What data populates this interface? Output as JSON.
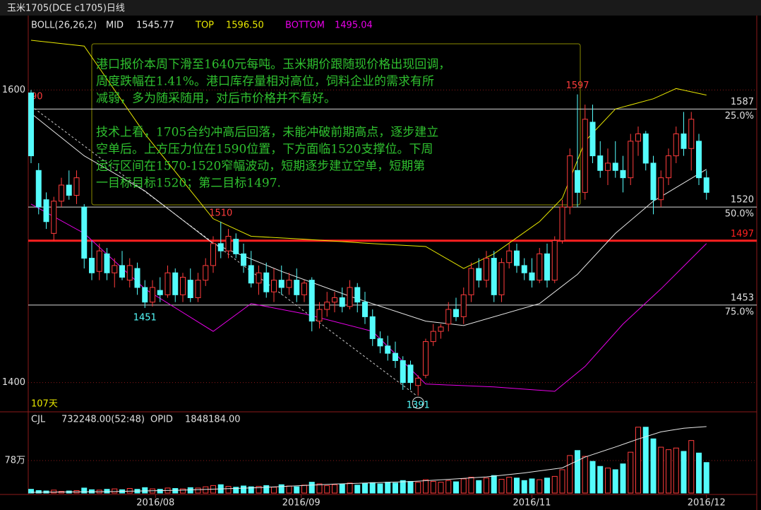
{
  "header": {
    "title": "玉米1705(DCE c1705)日线"
  },
  "chart_data": {
    "type": "candlestick",
    "indicator": {
      "name": "BOLL(26,26,2)",
      "items": [
        {
          "name": "MID",
          "value": 1545.77,
          "label": "1545.77",
          "color": "#e8e8e8"
        },
        {
          "name": "TOP",
          "value": 1596.5,
          "label": "1596.50",
          "color": "#e8e800"
        },
        {
          "name": "BOTTOM",
          "value": 1495.04,
          "label": "1495.04",
          "color": "#e800e8"
        }
      ]
    },
    "ylim": [
      1380,
      1648
    ],
    "yticks": [
      1400,
      1600
    ],
    "grid": true,
    "up_color": "#ff3c3c",
    "down_color": "#54fcfc",
    "ohlc": [
      [
        1598,
        1600,
        1550,
        1555
      ],
      [
        1545,
        1550,
        1515,
        1520
      ],
      [
        1525,
        1530,
        1505,
        1510
      ],
      [
        1502,
        1527,
        1497,
        1524
      ],
      [
        1524,
        1540,
        1520,
        1535
      ],
      [
        1535,
        1545,
        1525,
        1528
      ],
      [
        1528,
        1545,
        1522,
        1540
      ],
      [
        1520,
        1522,
        1478,
        1485
      ],
      [
        1485,
        1497,
        1470,
        1475
      ],
      [
        1476,
        1495,
        1470,
        1490
      ],
      [
        1488,
        1492,
        1470,
        1475
      ],
      [
        1475,
        1485,
        1465,
        1480
      ],
      [
        1480,
        1490,
        1470,
        1472
      ],
      [
        1470,
        1485,
        1465,
        1480
      ],
      [
        1478,
        1482,
        1460,
        1465
      ],
      [
        1465,
        1470,
        1451,
        1455
      ],
      [
        1455,
        1470,
        1452,
        1465
      ],
      [
        1463,
        1472,
        1455,
        1460
      ],
      [
        1460,
        1480,
        1458,
        1475
      ],
      [
        1475,
        1478,
        1455,
        1460
      ],
      [
        1460,
        1475,
        1455,
        1472
      ],
      [
        1470,
        1478,
        1455,
        1458
      ],
      [
        1458,
        1475,
        1455,
        1470
      ],
      [
        1470,
        1485,
        1466,
        1480
      ],
      [
        1480,
        1500,
        1475,
        1495
      ],
      [
        1495,
        1510,
        1485,
        1490
      ],
      [
        1490,
        1505,
        1485,
        1500
      ],
      [
        1498,
        1502,
        1485,
        1488
      ],
      [
        1488,
        1495,
        1475,
        1480
      ],
      [
        1480,
        1490,
        1465,
        1468
      ],
      [
        1468,
        1480,
        1460,
        1475
      ],
      [
        1475,
        1482,
        1458,
        1462
      ],
      [
        1462,
        1478,
        1455,
        1470
      ],
      [
        1470,
        1480,
        1460,
        1465
      ],
      [
        1465,
        1475,
        1460,
        1470
      ],
      [
        1470,
        1478,
        1455,
        1460
      ],
      [
        1460,
        1470,
        1455,
        1468
      ],
      [
        1470,
        1472,
        1435,
        1442
      ],
      [
        1442,
        1455,
        1437,
        1450
      ],
      [
        1450,
        1462,
        1445,
        1455
      ],
      [
        1455,
        1462,
        1448,
        1458
      ],
      [
        1458,
        1465,
        1448,
        1452
      ],
      [
        1452,
        1470,
        1450,
        1465
      ],
      [
        1465,
        1468,
        1448,
        1455
      ],
      [
        1455,
        1462,
        1440,
        1445
      ],
      [
        1445,
        1450,
        1425,
        1430
      ],
      [
        1430,
        1435,
        1420,
        1425
      ],
      [
        1425,
        1432,
        1415,
        1420
      ],
      [
        1420,
        1428,
        1410,
        1415
      ],
      [
        1415,
        1418,
        1395,
        1400
      ],
      [
        1412,
        1415,
        1395,
        1400
      ],
      [
        1398,
        1405,
        1391,
        1403
      ],
      [
        1405,
        1430,
        1403,
        1428
      ],
      [
        1428,
        1440,
        1425,
        1435
      ],
      [
        1435,
        1440,
        1430,
        1438
      ],
      [
        1440,
        1455,
        1435,
        1450
      ],
      [
        1450,
        1458,
        1442,
        1445
      ],
      [
        1445,
        1465,
        1440,
        1460
      ],
      [
        1460,
        1482,
        1455,
        1478
      ],
      [
        1478,
        1485,
        1465,
        1470
      ],
      [
        1470,
        1490,
        1465,
        1485
      ],
      [
        1485,
        1490,
        1455,
        1460
      ],
      [
        1460,
        1485,
        1455,
        1482
      ],
      [
        1482,
        1495,
        1478,
        1490
      ],
      [
        1490,
        1495,
        1475,
        1480
      ],
      [
        1480,
        1485,
        1470,
        1475
      ],
      [
        1475,
        1485,
        1465,
        1470
      ],
      [
        1470,
        1492,
        1468,
        1488
      ],
      [
        1488,
        1495,
        1465,
        1470
      ],
      [
        1470,
        1500,
        1468,
        1497
      ],
      [
        1497,
        1525,
        1495,
        1520
      ],
      [
        1520,
        1560,
        1515,
        1555
      ],
      [
        1545,
        1597,
        1520,
        1530
      ],
      [
        1530,
        1590,
        1525,
        1580
      ],
      [
        1578,
        1590,
        1550,
        1555
      ],
      [
        1555,
        1565,
        1540,
        1545
      ],
      [
        1545,
        1560,
        1535,
        1550
      ],
      [
        1550,
        1565,
        1540,
        1545
      ],
      [
        1545,
        1555,
        1530,
        1540
      ],
      [
        1540,
        1570,
        1535,
        1565
      ],
      [
        1565,
        1575,
        1555,
        1570
      ],
      [
        1570,
        1572,
        1545,
        1550
      ],
      [
        1550,
        1555,
        1515,
        1525
      ],
      [
        1525,
        1545,
        1520,
        1540
      ],
      [
        1540,
        1560,
        1535,
        1555
      ],
      [
        1555,
        1575,
        1550,
        1570
      ],
      [
        1570,
        1585,
        1555,
        1560
      ],
      [
        1560,
        1585,
        1545,
        1580
      ],
      [
        1565,
        1570,
        1535,
        1540
      ],
      [
        1540,
        1545,
        1525,
        1530
      ]
    ],
    "bands": [
      {
        "name": "TOP",
        "color": "#e8e800",
        "x": [
          0,
          7,
          15,
          24,
          29,
          36,
          45,
          52,
          57,
          61,
          67,
          70,
          73,
          77,
          82,
          85,
          89
        ],
        "values": [
          1634,
          1630,
          1570,
          1512,
          1500,
          1498,
          1495,
          1493,
          1478,
          1488,
          1510,
          1526,
          1565,
          1587,
          1594,
          1601,
          1596.5
        ]
      },
      {
        "name": "MID",
        "color": "#e8e8e8",
        "x": [
          0,
          7,
          15,
          24,
          33,
          42,
          52,
          57,
          67,
          72,
          77,
          82,
          89
        ],
        "values": [
          1584,
          1555,
          1531,
          1495,
          1476,
          1459,
          1442,
          1439,
          1454,
          1474,
          1502,
          1524,
          1545.77
        ]
      },
      {
        "name": "BOTTOM",
        "color": "#e800e8",
        "x": [
          0,
          7,
          15,
          24,
          29,
          36,
          45,
          52,
          61,
          69,
          73,
          78,
          83,
          89
        ],
        "values": [
          1522,
          1502,
          1464,
          1435,
          1454,
          1447,
          1435,
          1399,
          1397,
          1394,
          1411,
          1440,
          1464,
          1495.04
        ]
      }
    ],
    "levels": [
      {
        "value": 1587,
        "ratio": "25.0%"
      },
      {
        "value": 1520,
        "ratio": "50.0%"
      },
      {
        "value": 1453,
        "ratio": "75.0%"
      }
    ],
    "resistance": {
      "value": 1497,
      "color": "#ff2020"
    },
    "annotations": [
      {
        "x": 72,
        "value": 1597
      },
      {
        "x": 25,
        "value": 1510
      },
      {
        "x": 15,
        "value": 1451
      },
      {
        "x": 51,
        "value": 1391
      }
    ],
    "edge_label": "90",
    "days_label": "107天",
    "xticks": [
      {
        "value": 16.4,
        "label": "2016/08"
      },
      {
        "value": 35.6,
        "label": "2016/09"
      },
      {
        "value": 66,
        "label": "2016/11"
      },
      {
        "value": 89,
        "label": "2016/12"
      }
    ],
    "volume": {
      "name": "CJL",
      "label": "732248.00(52:48)",
      "ylim": [
        0,
        1830000
      ],
      "yticks": [
        {
          "value": 780000,
          "label": "78万"
        }
      ],
      "values": [
        90000,
        60000,
        50000,
        70000,
        40000,
        50000,
        60000,
        120000,
        80000,
        70000,
        90000,
        100000,
        80000,
        110000,
        90000,
        130000,
        100000,
        90000,
        120000,
        110000,
        100000,
        130000,
        120000,
        150000,
        180000,
        200000,
        160000,
        140000,
        170000,
        150000,
        160000,
        180000,
        140000,
        200000,
        170000,
        150000,
        190000,
        260000,
        220000,
        180000,
        200000,
        210000,
        240000,
        190000,
        230000,
        250000,
        220000,
        260000,
        240000,
        300000,
        280000,
        260000,
        320000,
        280000,
        260000,
        300000,
        270000,
        340000,
        380000,
        300000,
        360000,
        420000,
        330000,
        380000,
        360000,
        300000,
        340000,
        320000,
        360000,
        400000,
        560000,
        900000,
        1020000,
        880000,
        760000,
        640000,
        600000,
        560000,
        700000,
        980000,
        1580000,
        1580000,
        1300000,
        1100000,
        1040000,
        1080000,
        1000000,
        1260000,
        960000,
        732248
      ]
    },
    "opid": {
      "name": "OPID",
      "label": "1848184.00",
      "color": "#e8e8e8",
      "y2lim": [
        0,
        2120000
      ],
      "x": [
        0,
        10,
        20,
        30,
        40,
        50,
        55,
        60,
        65,
        70,
        73,
        77,
        80,
        83,
        86,
        89
      ],
      "values": [
        20000,
        40000,
        80000,
        150000,
        250000,
        320000,
        380000,
        450000,
        560000,
        700000,
        1000000,
        1280000,
        1500000,
        1700000,
        1800000,
        1848184
      ]
    }
  },
  "note": {
    "paragraphs": [
      [
        "港口报价本周下滑至1640元每吨。玉米期价跟随现价格出现回调，",
        "周度跌幅在1.41%。港口库存量相对高位，饲料企业的需求有所",
        "减弱，多为随采随用，对后市价格并不看好。"
      ],
      [
        "技术上看，1705合约冲高后回落，未能冲破前期高点，逐步建立",
        "空单后。上方压力位在1590位置，下方面临1520支撑位。下周",
        "运行区间在1570-1520窄幅波动，短期逐步建立空单，短期第",
        "一目标目标1520；第二目标1497."
      ]
    ]
  }
}
